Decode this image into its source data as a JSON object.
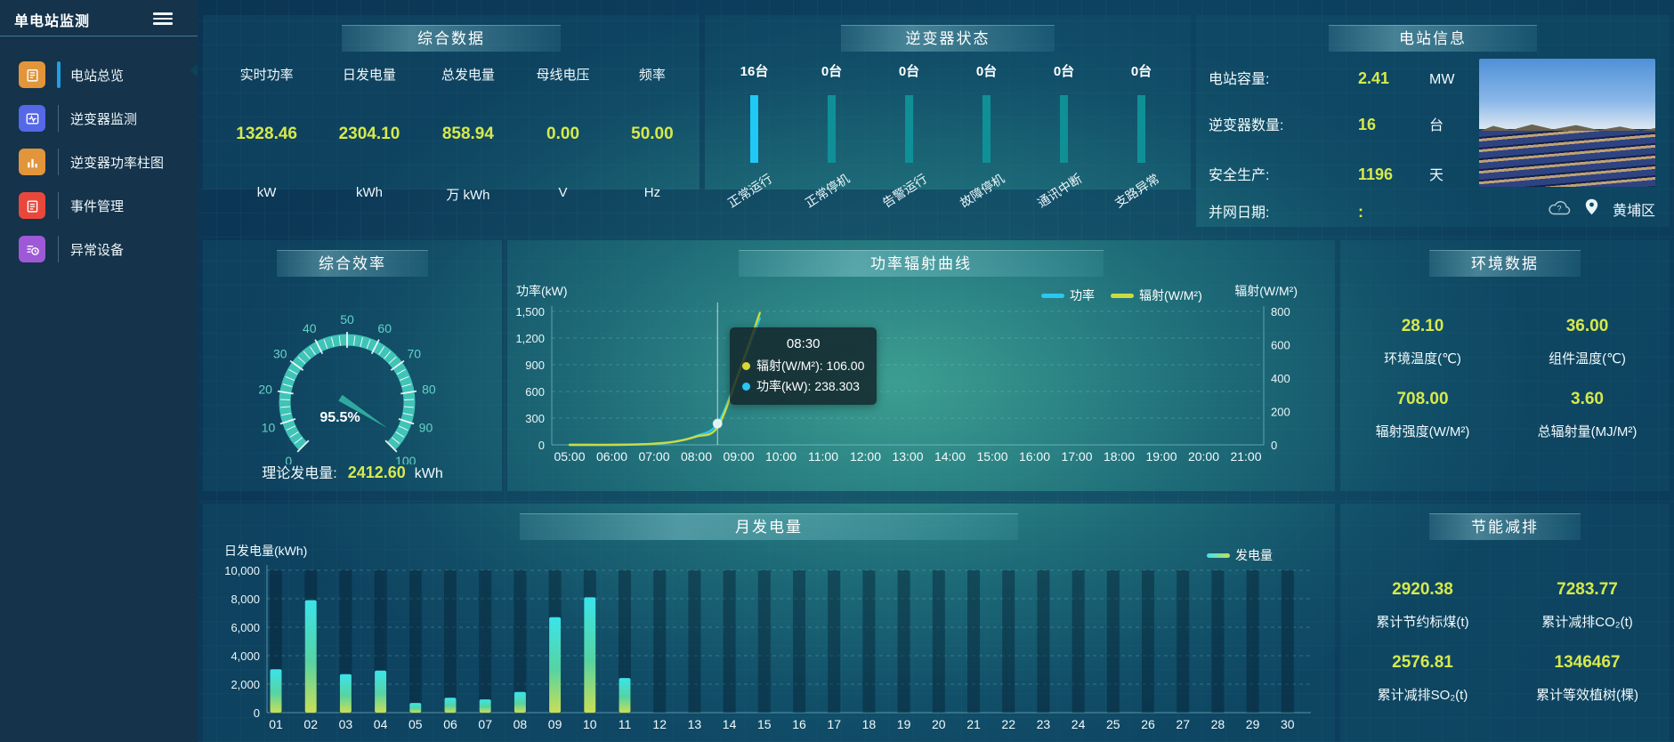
{
  "colors": {
    "value_yellow": "#d7e94c",
    "bar_blue": "#1fc8f5",
    "bar_teal": "#0f9096",
    "power_line": "#29c7f2",
    "radiation_line": "#cbdc3f",
    "gauge_arc": "#3fc4b7",
    "gen_bar_top": "#3ae4ea",
    "gen_bar_mid": "#57d3a2",
    "gen_bar_bottom": "#c9df56"
  },
  "sidebar": {
    "title": "单电站监测",
    "items": [
      {
        "label": "电站总览",
        "icon": "station-overview",
        "color": "#e2953b",
        "active": true
      },
      {
        "label": "逆变器监测",
        "icon": "inverter-monitor",
        "color": "#5568e8",
        "active": false
      },
      {
        "label": "逆变器功率柱图",
        "icon": "inverter-power-bars",
        "color": "#e2953b",
        "active": false
      },
      {
        "label": "事件管理",
        "icon": "event-management",
        "color": "#e8483b",
        "active": false
      },
      {
        "label": "异常设备",
        "icon": "abnormal-device",
        "color": "#9e59d6",
        "active": false
      }
    ]
  },
  "panels": {
    "comprehensive": {
      "title": "综合数据",
      "metrics": [
        {
          "label": "实时功率",
          "value": "1328.46",
          "unit": "kW"
        },
        {
          "label": "日发电量",
          "value": "2304.10",
          "unit": "kWh"
        },
        {
          "label": "总发电量",
          "value": "858.94",
          "unit": "万 kWh"
        },
        {
          "label": "母线电压",
          "value": "0.00",
          "unit": "V"
        },
        {
          "label": "频率",
          "value": "50.00",
          "unit": "Hz"
        }
      ]
    },
    "inverter_status": {
      "title": "逆变器状态",
      "items": [
        {
          "count": "16台",
          "label": "正常运行",
          "highlight": true
        },
        {
          "count": "0台",
          "label": "正常停机",
          "highlight": false
        },
        {
          "count": "0台",
          "label": "告警运行",
          "highlight": false
        },
        {
          "count": "0台",
          "label": "故障停机",
          "highlight": false
        },
        {
          "count": "0台",
          "label": "通讯中断",
          "highlight": false
        },
        {
          "count": "0台",
          "label": "支路异常",
          "highlight": false
        }
      ]
    },
    "station_info": {
      "title": "电站信息",
      "rows": [
        {
          "label": "电站容量:",
          "value": "2.41",
          "unit": "MW"
        },
        {
          "label": "逆变器数量:",
          "value": "16",
          "unit": "台"
        },
        {
          "label": "安全生产:",
          "value": "1196",
          "unit": "天"
        },
        {
          "label": "并网日期:",
          "value": ":",
          "unit": ""
        }
      ],
      "location": "黄埔区"
    },
    "efficiency": {
      "title": "综合效率",
      "footer_label": "理论发电量:",
      "footer_value": "2412.60",
      "footer_unit": "kWh"
    },
    "curve": {
      "title": "功率辐射曲线",
      "tooltip": {
        "time": "08:30",
        "rows": [
          {
            "dot": "#d9d832",
            "text": "辐射(W/M²): 106.00"
          },
          {
            "dot": "#27c5f5",
            "text": "功率(kW): 238.303"
          }
        ]
      }
    },
    "environment": {
      "title": "环境数据",
      "metrics": [
        {
          "value": "28.10",
          "label": "环境温度(℃)"
        },
        {
          "value": "36.00",
          "label": "组件温度(℃)"
        },
        {
          "value": "708.00",
          "label": "辐射强度(W/M²)"
        },
        {
          "value": "3.60",
          "label": "总辐射量(MJ/M²)"
        }
      ]
    },
    "monthly": {
      "title": "月发电量"
    },
    "energy_saving": {
      "title": "节能减排",
      "metrics": [
        {
          "value": "2920.38",
          "label": "累计节约标煤(t)"
        },
        {
          "value": "7283.77",
          "label": "累计减排CO₂(t)"
        },
        {
          "value": "2576.81",
          "label": "累计减排SO₂(t)"
        },
        {
          "value": "1346467",
          "label": "累计等效植树(棵)"
        }
      ]
    }
  },
  "chart_data": [
    {
      "id": "efficiency_gauge",
      "type": "gauge",
      "title": "综合效率",
      "min": 0,
      "max": 100,
      "value": 95.5,
      "value_label": "95.5%",
      "tick_labels": [
        "0",
        "10",
        "20",
        "30",
        "40",
        "50",
        "60",
        "70",
        "80",
        "90",
        "100"
      ],
      "start_angle": 225,
      "end_angle": -45
    },
    {
      "id": "power_radiation",
      "type": "line",
      "title": "功率辐射曲线",
      "x_axis": [
        "05:00",
        "06:00",
        "07:00",
        "08:00",
        "09:00",
        "10:00",
        "11:00",
        "12:00",
        "13:00",
        "14:00",
        "15:00",
        "16:00",
        "17:00",
        "18:00",
        "19:00",
        "20:00",
        "21:00"
      ],
      "y_left": {
        "label": "功率(kW)",
        "min": 0,
        "max": 1500,
        "ticks": [
          "0",
          "300",
          "600",
          "900",
          "1,200",
          "1,500"
        ]
      },
      "y_right": {
        "label": "辐射(W/M²)",
        "min": 0,
        "max": 800,
        "ticks": [
          "0",
          "200",
          "400",
          "600",
          "800"
        ]
      },
      "legend": [
        "功率",
        "辐射(W/M²)"
      ],
      "series": [
        {
          "name": "功率",
          "axis": "left",
          "color": "#29c7f2",
          "x": [
            "05:00",
            "05:30",
            "06:00",
            "06:30",
            "07:00",
            "07:30",
            "08:00",
            "08:30",
            "09:00",
            "09:30"
          ],
          "values": [
            0,
            0,
            1,
            3,
            10,
            35,
            100,
            238.303,
            800,
            1420
          ]
        },
        {
          "name": "辐射(W/M²)",
          "axis": "right",
          "color": "#cbdc3f",
          "x": [
            "05:00",
            "05:30",
            "06:00",
            "06:30",
            "07:00",
            "07:30",
            "08:00",
            "08:30",
            "09:00",
            "09:30"
          ],
          "values": [
            0,
            0,
            0,
            2,
            7,
            20,
            50,
            106,
            430,
            790
          ]
        }
      ],
      "highlight": {
        "x": "08:30",
        "crosshair": true
      }
    },
    {
      "id": "monthly_generation",
      "type": "bar",
      "title": "月发电量",
      "ylabel": "日发电量(kWh)",
      "legend": [
        "发电量"
      ],
      "categories": [
        "01",
        "02",
        "03",
        "04",
        "05",
        "06",
        "07",
        "08",
        "09",
        "10",
        "11",
        "12",
        "13",
        "14",
        "15",
        "16",
        "17",
        "18",
        "19",
        "20",
        "21",
        "22",
        "23",
        "24",
        "25",
        "26",
        "27",
        "28",
        "29",
        "30"
      ],
      "values": [
        3050,
        7900,
        2700,
        2950,
        680,
        1050,
        930,
        1450,
        6700,
        8100,
        2430,
        0,
        0,
        0,
        0,
        0,
        0,
        0,
        0,
        0,
        0,
        0,
        0,
        0,
        0,
        0,
        0,
        0,
        0,
        0
      ],
      "ylim": [
        0,
        10000
      ],
      "yticks": [
        "0",
        "2,000",
        "4,000",
        "6,000",
        "8,000",
        "10,000"
      ]
    },
    {
      "id": "inverter_status_bars",
      "type": "bar",
      "categories": [
        "正常运行",
        "正常停机",
        "告警运行",
        "故障停机",
        "通讯中断",
        "支路异常"
      ],
      "values": [
        16,
        0,
        0,
        0,
        0,
        0
      ],
      "unit": "台"
    }
  ]
}
